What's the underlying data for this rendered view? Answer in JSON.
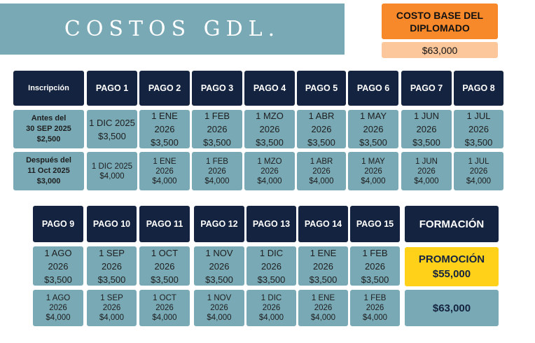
{
  "title": "COSTOS  GDL.",
  "base": {
    "label": "COSTO BASE DEL DIPLOMADO",
    "value": "$63,000"
  },
  "row1": {
    "headers": [
      "Inscripción",
      "PAGO 1",
      "PAGO 2",
      "PAGO 3",
      "PAGO 4",
      "PAGO 5",
      "PAGO 6",
      "PAGO 7",
      "PAGO 8"
    ],
    "labels": [
      [
        "Antes del",
        "30 SEP 2025",
        "$2,500"
      ],
      [
        "Después del",
        "11 Oct 2025",
        "$3,000"
      ]
    ],
    "before": [
      [
        "1 DIC 2025",
        "$3,500"
      ],
      [
        "1 ENE",
        "2026",
        "$3,500"
      ],
      [
        "1 FEB",
        "2026",
        "$3,500"
      ],
      [
        "1 MZO",
        "2026",
        "$3,500"
      ],
      [
        "1 ABR",
        "2026",
        "$3,500"
      ],
      [
        "1 MAY",
        "2026",
        "$3,500"
      ],
      [
        "1 JUN",
        "2026",
        "$3,500"
      ],
      [
        "1 JUL",
        "2026",
        "$3,500"
      ]
    ],
    "after": [
      [
        "1 DIC 2025",
        "$4,000"
      ],
      [
        "1 ENE",
        "2026",
        "$4,000"
      ],
      [
        "1 FEB",
        "2026",
        "$4,000"
      ],
      [
        "1 MZO",
        "2026",
        "$4,000"
      ],
      [
        "1 ABR",
        "2026",
        "$4,000"
      ],
      [
        "1 MAY",
        "2026",
        "$4,000"
      ],
      [
        "1 JUN",
        "2026",
        "$4,000"
      ],
      [
        "1 JUL",
        "2026",
        "$4,000"
      ]
    ]
  },
  "row2": {
    "headers": [
      "PAGO 9",
      "PAGO 10",
      "PAGO 11",
      "PAGO 12",
      "PAGO 13",
      "PAGO 14",
      "PAGO 15",
      "FORMACIÓN"
    ],
    "before": [
      [
        "1 AGO",
        "2026",
        "$3,500"
      ],
      [
        "1  SEP",
        "2026",
        "$3,500"
      ],
      [
        "1 OCT",
        "2026",
        "$3,500"
      ],
      [
        "1 NOV",
        "2026",
        "$3,500"
      ],
      [
        "1 DIC",
        "2026",
        "$3,500"
      ],
      [
        "1 ENE",
        "2026",
        "$3,500"
      ],
      [
        "1 FEB",
        "2026",
        "$3,500"
      ]
    ],
    "after": [
      [
        "1 AGO",
        "2026",
        "$4,000"
      ],
      [
        "1  SEP",
        "2026",
        "$4,000"
      ],
      [
        "1 OCT",
        "2026",
        "$4,000"
      ],
      [
        "1 NOV",
        "2026",
        "$4,000"
      ],
      [
        "1 DIC",
        "2026",
        "$4,000"
      ],
      [
        "1 ENE",
        "2026",
        "$4,000"
      ],
      [
        "1 FEB",
        "2026",
        "$4,000"
      ]
    ],
    "promo": {
      "label": "PROMOCIÓN",
      "value": "$55,000"
    },
    "full_price": "$63,000"
  },
  "colors": {
    "dark": "#14233f",
    "teal": "#78a9b5",
    "orange": "#f7892b",
    "peach": "#fdc79c",
    "yellow": "#ffd119"
  }
}
